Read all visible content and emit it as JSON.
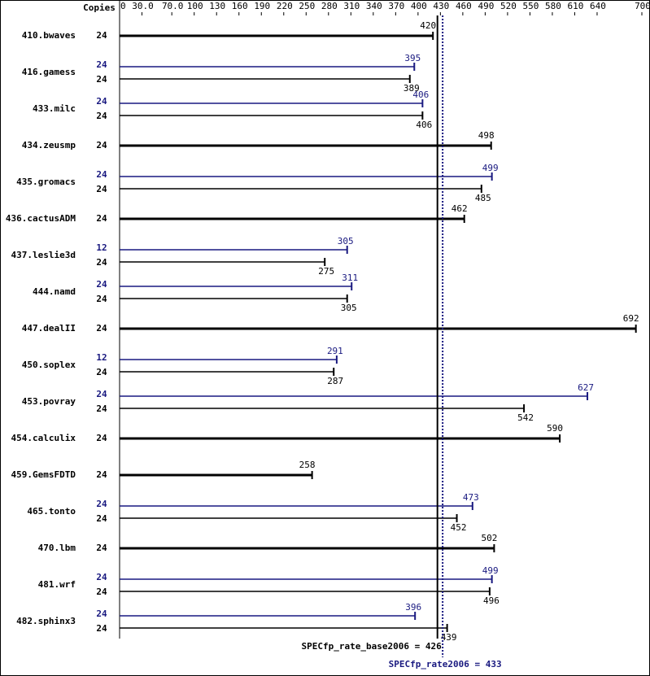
{
  "chart_data": {
    "type": "bar",
    "header": "Copies",
    "categories": [
      "410.bwaves",
      "416.gamess",
      "433.milc",
      "434.zeusmp",
      "435.gromacs",
      "436.cactusADM",
      "437.leslie3d",
      "444.namd",
      "447.dealII",
      "450.soplex",
      "453.povray",
      "454.calculix",
      "459.GemsFDTD",
      "465.tonto",
      "470.lbm",
      "481.wrf",
      "482.sphinx3"
    ],
    "series": [
      {
        "color": "#000000",
        "values": [
          420,
          389,
          406,
          498,
          485,
          462,
          275,
          305,
          692,
          287,
          542,
          590,
          258,
          452,
          502,
          496,
          439
        ],
        "copies": [
          24,
          24,
          24,
          24,
          24,
          24,
          24,
          24,
          24,
          24,
          24,
          24,
          24,
          24,
          24,
          24,
          24
        ]
      },
      {
        "color": "#191980",
        "values": [
          null,
          395,
          406,
          null,
          499,
          null,
          305,
          311,
          null,
          291,
          627,
          null,
          null,
          473,
          null,
          499,
          396
        ],
        "copies": [
          null,
          24,
          24,
          null,
          24,
          null,
          12,
          24,
          null,
          12,
          24,
          null,
          null,
          24,
          null,
          24,
          24
        ]
      }
    ],
    "xlim": [
      0,
      700
    ],
    "xticks": [
      0,
      {
        "value": 30,
        "label": "30.0"
      },
      {
        "value": 70,
        "label": "70.0"
      },
      100,
      130,
      160,
      190,
      220,
      250,
      280,
      310,
      340,
      370,
      400,
      430,
      460,
      490,
      520,
      550,
      580,
      610,
      640,
      700
    ],
    "summary": [
      {
        "label": "SPECfp_rate_base2006 = 426",
        "value": 426,
        "color": "#000000"
      },
      {
        "label": "SPECfp_rate2006 = 433",
        "value": 433,
        "color": "#191980"
      }
    ]
  }
}
